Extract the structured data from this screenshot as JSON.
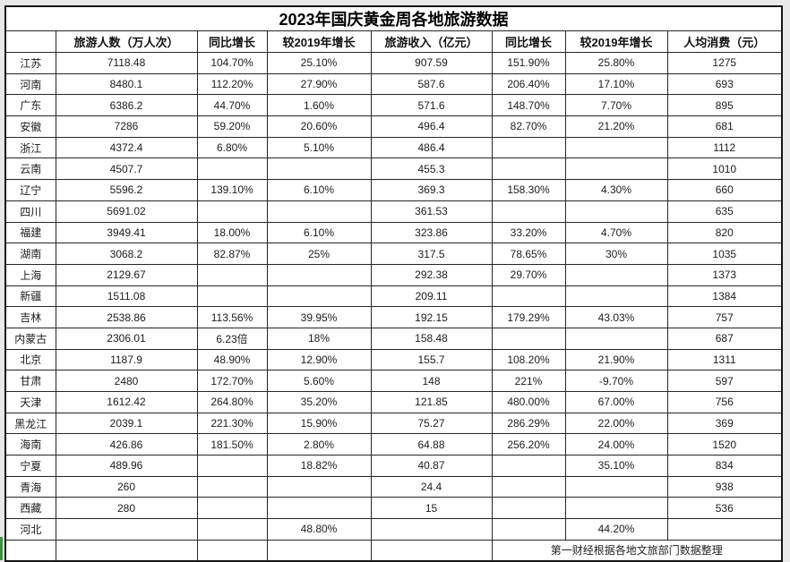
{
  "chart_data": {
    "type": "table",
    "title": "2023年国庆黄金周各地旅游数据",
    "columns": [
      "",
      "旅游人数（万人次）",
      "同比增长",
      "较2019年增长",
      "旅游收入（亿元）",
      "同比增长",
      "较2019年增长",
      "人均消费（元）"
    ],
    "rows": [
      {
        "province": "江苏",
        "cells": [
          "7118.48",
          "104.70%",
          "25.10%",
          "907.59",
          "151.90%",
          "25.80%",
          "1275"
        ]
      },
      {
        "province": "河南",
        "cells": [
          "8480.1",
          "112.20%",
          "27.90%",
          "587.6",
          "206.40%",
          "17.10%",
          "693"
        ]
      },
      {
        "province": "广东",
        "cells": [
          "6386.2",
          "44.70%",
          "1.60%",
          "571.6",
          "148.70%",
          "7.70%",
          "895"
        ]
      },
      {
        "province": "安徽",
        "cells": [
          "7286",
          "59.20%",
          "20.60%",
          "496.4",
          "82.70%",
          "21.20%",
          "681"
        ]
      },
      {
        "province": "浙江",
        "cells": [
          "4372.4",
          "6.80%",
          "5.10%",
          "486.4",
          "",
          "",
          "1112"
        ]
      },
      {
        "province": "云南",
        "cells": [
          "4507.7",
          "",
          "",
          "455.3",
          "",
          "",
          "1010"
        ]
      },
      {
        "province": "辽宁",
        "cells": [
          "5596.2",
          "139.10%",
          "6.10%",
          "369.3",
          "158.30%",
          "4.30%",
          "660"
        ]
      },
      {
        "province": "四川",
        "cells": [
          "5691.02",
          "",
          "",
          "361.53",
          "",
          "",
          "635"
        ]
      },
      {
        "province": "福建",
        "cells": [
          "3949.41",
          "18.00%",
          "6.10%",
          "323.86",
          "33.20%",
          "4.70%",
          "820"
        ]
      },
      {
        "province": "湖南",
        "cells": [
          "3068.2",
          "82.87%",
          "25%",
          "317.5",
          "78.65%",
          "30%",
          "1035"
        ]
      },
      {
        "province": "上海",
        "cells": [
          "2129.67",
          "",
          "",
          "292.38",
          "29.70%",
          "",
          "1373"
        ]
      },
      {
        "province": "新疆",
        "cells": [
          "1511.08",
          "",
          "",
          "209.11",
          "",
          "",
          "1384"
        ]
      },
      {
        "province": "吉林",
        "cells": [
          "2538.86",
          "113.56%",
          "39.95%",
          "192.15",
          "179.29%",
          "43.03%",
          "757"
        ]
      },
      {
        "province": "内蒙古",
        "cells": [
          "2306.01",
          "6.23倍",
          "18%",
          "158.48",
          "",
          "",
          "687"
        ]
      },
      {
        "province": "北京",
        "cells": [
          "1187.9",
          "48.90%",
          "12.90%",
          "155.7",
          "108.20%",
          "21.90%",
          "1311"
        ]
      },
      {
        "province": "甘肃",
        "cells": [
          "2480",
          "172.70%",
          "5.60%",
          "148",
          "221%",
          "-9.70%",
          "597"
        ]
      },
      {
        "province": "天津",
        "cells": [
          "1612.42",
          "264.80%",
          "35.20%",
          "121.85",
          "480.00%",
          "67.00%",
          "756"
        ]
      },
      {
        "province": "黑龙江",
        "cells": [
          "2039.1",
          "221.30%",
          "15.90%",
          "75.27",
          "286.29%",
          "22.00%",
          "369"
        ]
      },
      {
        "province": "海南",
        "cells": [
          "426.86",
          "181.50%",
          "2.80%",
          "64.88",
          "256.20%",
          "24.00%",
          "1520"
        ]
      },
      {
        "province": "宁夏",
        "cells": [
          "489.96",
          "",
          "18.82%",
          "40.87",
          "",
          "35.10%",
          "834"
        ]
      },
      {
        "province": "青海",
        "cells": [
          "260",
          "",
          "",
          "24.4",
          "",
          "",
          "938"
        ]
      },
      {
        "province": "西藏",
        "cells": [
          "280",
          "",
          "",
          "15",
          "",
          "",
          "536"
        ]
      },
      {
        "province": "河北",
        "cells": [
          "",
          "",
          "48.80%",
          "",
          "",
          "44.20%",
          ""
        ]
      }
    ],
    "source_note": "第一财经根据各地文旅部门数据整理"
  },
  "colors": {
    "page_background": "#e9e9e9",
    "table_border": "#262626",
    "active_cell_cursor_green": "#3f9142"
  }
}
